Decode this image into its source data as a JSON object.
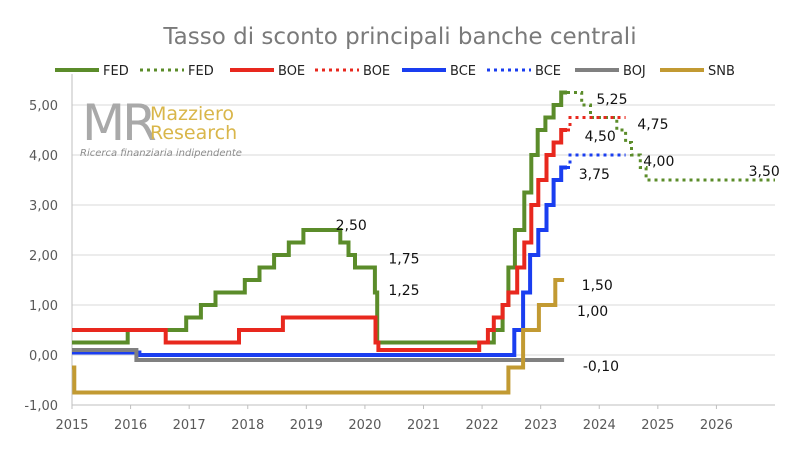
{
  "chart_data": {
    "type": "line",
    "title": "Tasso di sconto principali banche centrali",
    "xlabel": "",
    "ylabel": "",
    "xlim": [
      2015,
      2027
    ],
    "ylim": [
      -1.0,
      5.5
    ],
    "x_ticks": [
      "2015",
      "2016",
      "2017",
      "2018",
      "2019",
      "2020",
      "2021",
      "2022",
      "2023",
      "2024",
      "2025",
      "2026"
    ],
    "y_ticks": [
      "-1,00",
      "0,00",
      "1,00",
      "2,00",
      "3,00",
      "4,00",
      "5,00"
    ],
    "grid": true,
    "legend_position": "top",
    "legend": [
      {
        "label": "FED",
        "color": "#5b8c2a",
        "style": "solid"
      },
      {
        "label": "FED",
        "color": "#5b8c2a",
        "style": "dotted"
      },
      {
        "label": "BOE",
        "color": "#e8281e",
        "style": "solid"
      },
      {
        "label": "BOE",
        "color": "#e8281e",
        "style": "dotted"
      },
      {
        "label": "BCE",
        "color": "#1a3ef0",
        "style": "solid"
      },
      {
        "label": "BCE",
        "color": "#1a3ef0",
        "style": "dotted"
      },
      {
        "label": "BOJ",
        "color": "#808080",
        "style": "solid"
      },
      {
        "label": "SNB",
        "color": "#c29a32",
        "style": "solid"
      }
    ],
    "series": [
      {
        "key": "fed",
        "color": "#5b8c2a",
        "style": "solid",
        "points": [
          [
            2015.0,
            0.25
          ],
          [
            2015.95,
            0.25
          ],
          [
            2015.95,
            0.5
          ],
          [
            2016.95,
            0.5
          ],
          [
            2016.95,
            0.75
          ],
          [
            2017.2,
            0.75
          ],
          [
            2017.2,
            1.0
          ],
          [
            2017.45,
            1.0
          ],
          [
            2017.45,
            1.25
          ],
          [
            2017.95,
            1.25
          ],
          [
            2017.95,
            1.5
          ],
          [
            2018.2,
            1.5
          ],
          [
            2018.2,
            1.75
          ],
          [
            2018.45,
            1.75
          ],
          [
            2018.45,
            2.0
          ],
          [
            2018.7,
            2.0
          ],
          [
            2018.7,
            2.25
          ],
          [
            2018.95,
            2.25
          ],
          [
            2018.95,
            2.5
          ],
          [
            2019.58,
            2.5
          ],
          [
            2019.58,
            2.25
          ],
          [
            2019.72,
            2.25
          ],
          [
            2019.72,
            2.0
          ],
          [
            2019.83,
            2.0
          ],
          [
            2019.83,
            1.75
          ],
          [
            2020.17,
            1.75
          ],
          [
            2020.17,
            1.25
          ],
          [
            2020.21,
            1.25
          ],
          [
            2020.21,
            0.25
          ],
          [
            2022.2,
            0.25
          ],
          [
            2022.2,
            0.5
          ],
          [
            2022.35,
            0.5
          ],
          [
            2022.35,
            1.0
          ],
          [
            2022.45,
            1.0
          ],
          [
            2022.45,
            1.75
          ],
          [
            2022.56,
            1.75
          ],
          [
            2022.56,
            2.5
          ],
          [
            2022.72,
            2.5
          ],
          [
            2022.72,
            3.25
          ],
          [
            2022.84,
            3.25
          ],
          [
            2022.84,
            4.0
          ],
          [
            2022.95,
            4.0
          ],
          [
            2022.95,
            4.5
          ],
          [
            2023.08,
            4.5
          ],
          [
            2023.08,
            4.75
          ],
          [
            2023.22,
            4.75
          ],
          [
            2023.22,
            5.0
          ],
          [
            2023.35,
            5.0
          ],
          [
            2023.35,
            5.25
          ],
          [
            2023.45,
            5.25
          ]
        ]
      },
      {
        "key": "fed_forecast",
        "color": "#5b8c2a",
        "style": "dotted",
        "points": [
          [
            2023.45,
            5.25
          ],
          [
            2023.7,
            5.25
          ],
          [
            2023.7,
            5.0
          ],
          [
            2023.85,
            5.0
          ],
          [
            2023.85,
            4.75
          ],
          [
            2024.3,
            4.75
          ],
          [
            2024.3,
            4.5
          ],
          [
            2024.45,
            4.5
          ],
          [
            2024.45,
            4.25
          ],
          [
            2024.55,
            4.25
          ],
          [
            2024.55,
            4.0
          ],
          [
            2024.7,
            4.0
          ],
          [
            2024.7,
            3.75
          ],
          [
            2024.8,
            3.75
          ],
          [
            2024.8,
            3.5
          ],
          [
            2027.0,
            3.5
          ]
        ]
      },
      {
        "key": "boe",
        "color": "#e8281e",
        "style": "solid",
        "points": [
          [
            2015.0,
            0.5
          ],
          [
            2016.6,
            0.5
          ],
          [
            2016.6,
            0.25
          ],
          [
            2017.85,
            0.25
          ],
          [
            2017.85,
            0.5
          ],
          [
            2018.6,
            0.5
          ],
          [
            2018.6,
            0.75
          ],
          [
            2020.18,
            0.75
          ],
          [
            2020.18,
            0.25
          ],
          [
            2020.23,
            0.25
          ],
          [
            2020.23,
            0.1
          ],
          [
            2021.95,
            0.1
          ],
          [
            2021.95,
            0.25
          ],
          [
            2022.1,
            0.25
          ],
          [
            2022.1,
            0.5
          ],
          [
            2022.2,
            0.5
          ],
          [
            2022.2,
            0.75
          ],
          [
            2022.35,
            0.75
          ],
          [
            2022.35,
            1.0
          ],
          [
            2022.45,
            1.0
          ],
          [
            2022.45,
            1.25
          ],
          [
            2022.6,
            1.25
          ],
          [
            2022.6,
            1.75
          ],
          [
            2022.72,
            1.75
          ],
          [
            2022.72,
            2.25
          ],
          [
            2022.84,
            2.25
          ],
          [
            2022.84,
            3.0
          ],
          [
            2022.96,
            3.0
          ],
          [
            2022.96,
            3.5
          ],
          [
            2023.1,
            3.5
          ],
          [
            2023.1,
            4.0
          ],
          [
            2023.22,
            4.0
          ],
          [
            2023.22,
            4.25
          ],
          [
            2023.35,
            4.25
          ],
          [
            2023.35,
            4.5
          ],
          [
            2023.45,
            4.5
          ]
        ]
      },
      {
        "key": "boe_forecast",
        "color": "#e8281e",
        "style": "dotted",
        "points": [
          [
            2023.45,
            4.5
          ],
          [
            2023.5,
            4.5
          ],
          [
            2023.5,
            4.75
          ],
          [
            2024.45,
            4.75
          ]
        ]
      },
      {
        "key": "bce",
        "color": "#1a3ef0",
        "style": "solid",
        "points": [
          [
            2015.0,
            0.05
          ],
          [
            2016.15,
            0.05
          ],
          [
            2016.15,
            0.0
          ],
          [
            2022.55,
            0.0
          ],
          [
            2022.55,
            0.5
          ],
          [
            2022.7,
            0.5
          ],
          [
            2022.7,
            1.25
          ],
          [
            2022.82,
            1.25
          ],
          [
            2022.82,
            2.0
          ],
          [
            2022.96,
            2.0
          ],
          [
            2022.96,
            2.5
          ],
          [
            2023.1,
            2.5
          ],
          [
            2023.1,
            3.0
          ],
          [
            2023.22,
            3.0
          ],
          [
            2023.22,
            3.5
          ],
          [
            2023.35,
            3.5
          ],
          [
            2023.35,
            3.75
          ],
          [
            2023.45,
            3.75
          ]
        ]
      },
      {
        "key": "bce_forecast",
        "color": "#1a3ef0",
        "style": "dotted",
        "points": [
          [
            2023.45,
            3.75
          ],
          [
            2023.5,
            3.75
          ],
          [
            2023.5,
            4.0
          ],
          [
            2024.45,
            4.0
          ]
        ]
      },
      {
        "key": "boj",
        "color": "#808080",
        "style": "solid",
        "points": [
          [
            2015.0,
            0.1
          ],
          [
            2016.1,
            0.1
          ],
          [
            2016.1,
            -0.1
          ],
          [
            2023.4,
            -0.1
          ]
        ]
      },
      {
        "key": "snb",
        "color": "#c29a32",
        "style": "solid",
        "points": [
          [
            2015.0,
            -0.25
          ],
          [
            2015.04,
            -0.25
          ],
          [
            2015.04,
            -0.75
          ],
          [
            2022.45,
            -0.75
          ],
          [
            2022.45,
            -0.25
          ],
          [
            2022.7,
            -0.25
          ],
          [
            2022.7,
            0.5
          ],
          [
            2022.97,
            0.5
          ],
          [
            2022.97,
            1.0
          ],
          [
            2023.25,
            1.0
          ],
          [
            2023.25,
            1.5
          ],
          [
            2023.4,
            1.5
          ]
        ]
      }
    ],
    "annotations": [
      {
        "text": "2,50",
        "x": 2019.5,
        "y": 2.6
      },
      {
        "text": "1,75",
        "x": 2020.4,
        "y": 1.93
      },
      {
        "text": "1,25",
        "x": 2020.4,
        "y": 1.3
      },
      {
        "text": "5,25",
        "x": 2023.95,
        "y": 5.12
      },
      {
        "text": "4,75",
        "x": 2024.65,
        "y": 4.62
      },
      {
        "text": "4,50",
        "x": 2023.75,
        "y": 4.38
      },
      {
        "text": "4,00",
        "x": 2024.75,
        "y": 3.88
      },
      {
        "text": "3,75",
        "x": 2023.65,
        "y": 3.62
      },
      {
        "text": "3,50",
        "x": 2026.55,
        "y": 3.68
      },
      {
        "text": "1,50",
        "x": 2023.7,
        "y": 1.4
      },
      {
        "text": "1,00",
        "x": 2023.62,
        "y": 0.88
      },
      {
        "text": "-0,10",
        "x": 2023.72,
        "y": -0.22
      }
    ]
  },
  "watermark": {
    "logo": "MR",
    "name_line1": "Mazziero",
    "name_line2": "Research",
    "tagline": "Ricerca finanziaria indipendente"
  }
}
